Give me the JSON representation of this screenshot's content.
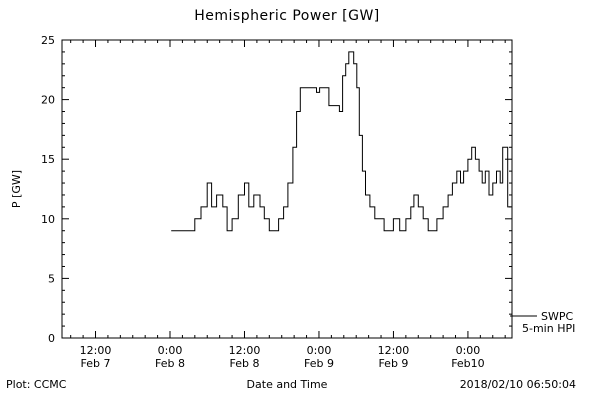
{
  "title": "Hemispheric Power [GW]",
  "legend": {
    "line1": "SWPC",
    "line2": "5-min HPI"
  },
  "footer": {
    "left": "Plot: CCMC",
    "center": "Date and Time",
    "right": "2018/02/10 06:50:04"
  },
  "colors": {
    "line": "#000000",
    "background": "#ffffff",
    "axis": "#000000"
  },
  "chart_data": {
    "type": "line",
    "title": "Hemispheric Power [GW]",
    "xlabel": "Date and Time",
    "ylabel": "P [GW]",
    "ylim": [
      0,
      25
    ],
    "y_ticks": [
      0,
      5,
      10,
      15,
      20,
      25
    ],
    "xlim_hours": [
      6.6,
      79.1
    ],
    "x_axis_note": "hours since 2018-02-07 00:00 UT",
    "x_ticks": [
      {
        "t": 12,
        "line1": "12:00",
        "line2": "Feb 7"
      },
      {
        "t": 24,
        "line1": "0:00",
        "line2": "Feb 8"
      },
      {
        "t": 36,
        "line1": "12:00",
        "line2": "Feb 8"
      },
      {
        "t": 48,
        "line1": "0:00",
        "line2": "Feb 9"
      },
      {
        "t": 60,
        "line1": "12:00",
        "line2": "Feb 9"
      },
      {
        "t": 72,
        "line1": "0:00",
        "line2": "Feb10"
      }
    ],
    "grid": false,
    "legend_position": "right-outside",
    "line_color": "#000000",
    "series": [
      {
        "name": "SWPC 5-min HPI",
        "step": true,
        "t_end": 78.9,
        "points": [
          [
            24.2,
            9
          ],
          [
            28,
            10
          ],
          [
            29,
            11
          ],
          [
            30,
            13
          ],
          [
            30.7,
            11
          ],
          [
            31.5,
            12
          ],
          [
            32.5,
            11
          ],
          [
            33.2,
            9
          ],
          [
            34,
            10
          ],
          [
            35,
            12
          ],
          [
            36,
            13
          ],
          [
            36.7,
            11
          ],
          [
            37.5,
            12
          ],
          [
            38.5,
            11
          ],
          [
            39.2,
            10
          ],
          [
            40,
            9
          ],
          [
            41.5,
            10
          ],
          [
            42.3,
            11
          ],
          [
            43,
            13
          ],
          [
            43.8,
            16
          ],
          [
            44.4,
            19
          ],
          [
            45,
            21
          ],
          [
            47.6,
            20.6
          ],
          [
            48.1,
            21
          ],
          [
            49.6,
            19.5
          ],
          [
            51.3,
            19
          ],
          [
            51.8,
            22
          ],
          [
            52.3,
            23
          ],
          [
            52.8,
            24
          ],
          [
            53.6,
            23
          ],
          [
            54.1,
            21
          ],
          [
            54.5,
            17
          ],
          [
            55,
            14
          ],
          [
            55.5,
            12
          ],
          [
            56.2,
            11
          ],
          [
            57,
            10
          ],
          [
            58.5,
            9
          ],
          [
            60,
            10
          ],
          [
            61,
            9
          ],
          [
            62,
            10
          ],
          [
            62.8,
            11
          ],
          [
            63.3,
            12
          ],
          [
            64,
            11
          ],
          [
            64.8,
            10
          ],
          [
            65.6,
            9
          ],
          [
            67,
            10
          ],
          [
            68,
            11
          ],
          [
            68.8,
            12
          ],
          [
            69.5,
            13
          ],
          [
            70.2,
            14
          ],
          [
            70.8,
            13
          ],
          [
            71.3,
            14
          ],
          [
            72,
            15
          ],
          [
            72.6,
            16
          ],
          [
            73.2,
            15
          ],
          [
            73.8,
            14
          ],
          [
            74.3,
            13
          ],
          [
            74.8,
            14
          ],
          [
            75.4,
            12
          ],
          [
            76,
            13
          ],
          [
            76.6,
            14
          ],
          [
            77.2,
            13
          ],
          [
            77.6,
            16
          ],
          [
            78.4,
            11
          ]
        ]
      }
    ]
  }
}
